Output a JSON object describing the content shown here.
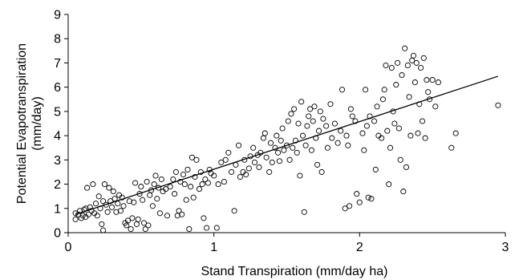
{
  "chart_data": {
    "type": "scatter",
    "xlabel": "Stand Transpiration (mm/day ha)",
    "ylabel": "Potential Evapotranspiration (mm/day)",
    "xlim": [
      0,
      3
    ],
    "ylim": [
      0,
      9
    ],
    "xticks": [
      0,
      1,
      2,
      3
    ],
    "yticks": [
      0,
      1,
      2,
      3,
      4,
      5,
      6,
      7,
      8,
      9
    ],
    "grid": false,
    "marker": "open-circle",
    "trendline": {
      "x": [
        0.05,
        2.95
      ],
      "y": [
        0.75,
        6.45
      ]
    },
    "points": [
      [
        0.05,
        0.55
      ],
      [
        0.05,
        0.8
      ],
      [
        0.07,
        0.75
      ],
      [
        0.08,
        0.9
      ],
      [
        0.09,
        0.6
      ],
      [
        0.1,
        0.7
      ],
      [
        0.11,
        0.95
      ],
      [
        0.12,
        0.65
      ],
      [
        0.12,
        1.0
      ],
      [
        0.13,
        1.85
      ],
      [
        0.14,
        0.75
      ],
      [
        0.15,
        1.05
      ],
      [
        0.16,
        0.9
      ],
      [
        0.17,
        2.0
      ],
      [
        0.18,
        0.8
      ],
      [
        0.19,
        1.2
      ],
      [
        0.2,
        0.7
      ],
      [
        0.21,
        1.5
      ],
      [
        0.22,
        1.0
      ],
      [
        0.23,
        0.35
      ],
      [
        0.24,
        0.1
      ],
      [
        0.24,
        1.3
      ],
      [
        0.25,
        2.0
      ],
      [
        0.26,
        1.15
      ],
      [
        0.27,
        0.85
      ],
      [
        0.28,
        1.85
      ],
      [
        0.29,
        1.3
      ],
      [
        0.3,
        1.05
      ],
      [
        0.31,
        1.7
      ],
      [
        0.32,
        1.4
      ],
      [
        0.33,
        0.85
      ],
      [
        0.34,
        1.2
      ],
      [
        0.35,
        1.55
      ],
      [
        0.36,
        0.9
      ],
      [
        0.37,
        1.45
      ],
      [
        0.38,
        1.1
      ],
      [
        0.39,
        0.4
      ],
      [
        0.4,
        0.3
      ],
      [
        0.41,
        0.5
      ],
      [
        0.42,
        1.3
      ],
      [
        0.43,
        0.15
      ],
      [
        0.44,
        0.6
      ],
      [
        0.45,
        1.25
      ],
      [
        0.46,
        2.05
      ],
      [
        0.47,
        0.35
      ],
      [
        0.48,
        0.55
      ],
      [
        0.49,
        1.6
      ],
      [
        0.5,
        1.9
      ],
      [
        0.51,
        1.35
      ],
      [
        0.52,
        0.4
      ],
      [
        0.53,
        0.15
      ],
      [
        0.54,
        2.1
      ],
      [
        0.55,
        0.3
      ],
      [
        0.56,
        1.55
      ],
      [
        0.57,
        1.75
      ],
      [
        0.58,
        1.1
      ],
      [
        0.59,
        2.0
      ],
      [
        0.6,
        2.35
      ],
      [
        0.61,
        1.4
      ],
      [
        0.62,
        1.85
      ],
      [
        0.63,
        0.8
      ],
      [
        0.64,
        2.2
      ],
      [
        0.65,
        1.7
      ],
      [
        0.67,
        1.8
      ],
      [
        0.68,
        0.7
      ],
      [
        0.7,
        1.9
      ],
      [
        0.72,
        2.2
      ],
      [
        0.73,
        1.6
      ],
      [
        0.74,
        2.5
      ],
      [
        0.75,
        0.7
      ],
      [
        0.76,
        0.9
      ],
      [
        0.77,
        2.1
      ],
      [
        0.78,
        0.75
      ],
      [
        0.79,
        2.4
      ],
      [
        0.8,
        2.0
      ],
      [
        0.81,
        1.35
      ],
      [
        0.82,
        2.6
      ],
      [
        0.83,
        0.15
      ],
      [
        0.84,
        1.9
      ],
      [
        0.85,
        3.1
      ],
      [
        0.86,
        1.45
      ],
      [
        0.87,
        2.3
      ],
      [
        0.88,
        3.0
      ],
      [
        0.9,
        1.8
      ],
      [
        0.91,
        2.5
      ],
      [
        0.92,
        2.0
      ],
      [
        0.93,
        0.6
      ],
      [
        0.94,
        2.2
      ],
      [
        0.95,
        0.2
      ],
      [
        0.96,
        2.05
      ],
      [
        0.97,
        2.6
      ],
      [
        0.98,
        2.45
      ],
      [
        1.0,
        2.35
      ],
      [
        1.02,
        0.2
      ],
      [
        1.03,
        2.0
      ],
      [
        1.05,
        2.9
      ],
      [
        1.07,
        2.1
      ],
      [
        1.08,
        3.0
      ],
      [
        1.1,
        3.3
      ],
      [
        1.12,
        2.5
      ],
      [
        1.14,
        0.9
      ],
      [
        1.15,
        2.8
      ],
      [
        1.17,
        3.6
      ],
      [
        1.18,
        2.3
      ],
      [
        1.2,
        2.5
      ],
      [
        1.21,
        3.0
      ],
      [
        1.22,
        2.4
      ],
      [
        1.24,
        2.65
      ],
      [
        1.25,
        3.15
      ],
      [
        1.27,
        3.5
      ],
      [
        1.28,
        2.9
      ],
      [
        1.3,
        3.2
      ],
      [
        1.31,
        2.7
      ],
      [
        1.32,
        3.3
      ],
      [
        1.34,
        3.9
      ],
      [
        1.35,
        4.1
      ],
      [
        1.36,
        3.1
      ],
      [
        1.38,
        2.5
      ],
      [
        1.39,
        3.7
      ],
      [
        1.4,
        2.9
      ],
      [
        1.42,
        3.5
      ],
      [
        1.43,
        4.0
      ],
      [
        1.44,
        3.3
      ],
      [
        1.45,
        2.95
      ],
      [
        1.46,
        3.8
      ],
      [
        1.47,
        4.3
      ],
      [
        1.48,
        3.4
      ],
      [
        1.5,
        3.6
      ],
      [
        1.51,
        4.6
      ],
      [
        1.52,
        3.0
      ],
      [
        1.53,
        4.9
      ],
      [
        1.54,
        3.5
      ],
      [
        1.55,
        5.1
      ],
      [
        1.56,
        3.8
      ],
      [
        1.57,
        3.3
      ],
      [
        1.58,
        4.5
      ],
      [
        1.59,
        2.35
      ],
      [
        1.6,
        5.4
      ],
      [
        1.61,
        4.0
      ],
      [
        1.62,
        0.85
      ],
      [
        1.63,
        3.6
      ],
      [
        1.64,
        4.4
      ],
      [
        1.65,
        4.8
      ],
      [
        1.66,
        5.1
      ],
      [
        1.67,
        3.4
      ],
      [
        1.68,
        4.6
      ],
      [
        1.69,
        5.2
      ],
      [
        1.7,
        3.9
      ],
      [
        1.71,
        2.8
      ],
      [
        1.72,
        4.2
      ],
      [
        1.73,
        5.0
      ],
      [
        1.74,
        2.5
      ],
      [
        1.75,
        4.7
      ],
      [
        1.77,
        4.4
      ],
      [
        1.78,
        3.5
      ],
      [
        1.8,
        5.3
      ],
      [
        1.81,
        3.9
      ],
      [
        1.83,
        4.5
      ],
      [
        1.85,
        3.7
      ],
      [
        1.87,
        4.2
      ],
      [
        1.88,
        5.9
      ],
      [
        1.9,
        1.0
      ],
      [
        1.91,
        4.0
      ],
      [
        1.92,
        3.6
      ],
      [
        1.93,
        1.1
      ],
      [
        1.94,
        5.1
      ],
      [
        1.95,
        4.8
      ],
      [
        1.97,
        4.6
      ],
      [
        1.98,
        1.6
      ],
      [
        2.0,
        1.25
      ],
      [
        2.02,
        4.1
      ],
      [
        2.03,
        3.4
      ],
      [
        2.04,
        5.9
      ],
      [
        2.05,
        4.4
      ],
      [
        2.06,
        1.45
      ],
      [
        2.07,
        4.8
      ],
      [
        2.08,
        1.4
      ],
      [
        2.1,
        4.6
      ],
      [
        2.11,
        2.6
      ],
      [
        2.12,
        5.2
      ],
      [
        2.13,
        4.0
      ],
      [
        2.15,
        3.9
      ],
      [
        2.16,
        5.5
      ],
      [
        2.17,
        5.9
      ],
      [
        2.18,
        6.9
      ],
      [
        2.19,
        4.2
      ],
      [
        2.2,
        2.0
      ],
      [
        2.21,
        3.5
      ],
      [
        2.22,
        6.8
      ],
      [
        2.23,
        5.0
      ],
      [
        2.24,
        4.5
      ],
      [
        2.25,
        6.1
      ],
      [
        2.26,
        7.0
      ],
      [
        2.27,
        4.3
      ],
      [
        2.28,
        3.0
      ],
      [
        2.29,
        6.5
      ],
      [
        2.3,
        1.7
      ],
      [
        2.31,
        7.6
      ],
      [
        2.32,
        2.7
      ],
      [
        2.33,
        6.9
      ],
      [
        2.34,
        5.6
      ],
      [
        2.35,
        4.0
      ],
      [
        2.36,
        7.1
      ],
      [
        2.37,
        7.3
      ],
      [
        2.38,
        6.2
      ],
      [
        2.39,
        7.0
      ],
      [
        2.4,
        4.1
      ],
      [
        2.41,
        5.3
      ],
      [
        2.42,
        6.8
      ],
      [
        2.43,
        4.6
      ],
      [
        2.44,
        7.2
      ],
      [
        2.45,
        3.9
      ],
      [
        2.46,
        6.3
      ],
      [
        2.47,
        5.8
      ],
      [
        2.48,
        5.5
      ],
      [
        2.5,
        6.3
      ],
      [
        2.52,
        5.2
      ],
      [
        2.54,
        6.2
      ],
      [
        2.63,
        3.5
      ],
      [
        2.66,
        4.1
      ],
      [
        2.95,
        5.25
      ]
    ]
  }
}
